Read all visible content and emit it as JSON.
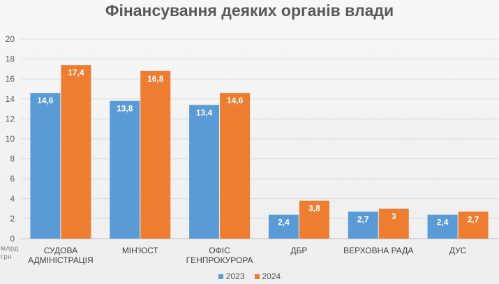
{
  "chart_data": {
    "type": "bar",
    "title": "Фінансування деяких органів влади",
    "unit_label": [
      "млрд",
      "грн"
    ],
    "categories": [
      [
        "СУДОВА",
        "АДМІНІСТРАЦІЯ"
      ],
      [
        "МІН'ЮСТ"
      ],
      [
        "ОФІС",
        "ГЕНПРОКУРОРА"
      ],
      [
        "ДБР"
      ],
      [
        "ВЕРХОВНА РАДА"
      ],
      [
        "ДУС"
      ]
    ],
    "series": [
      {
        "name": "2023",
        "color": "#5b9bd5",
        "values": [
          14.6,
          13.8,
          13.4,
          2.4,
          2.7,
          2.4
        ],
        "labels": [
          "14,6",
          "13,8",
          "13,4",
          "2,4",
          "2,7",
          "2,4"
        ]
      },
      {
        "name": "2024",
        "color": "#ed7d31",
        "values": [
          17.4,
          16.8,
          14.6,
          3.8,
          3,
          2.7
        ],
        "labels": [
          "17,4",
          "16,8",
          "14,6",
          "3,8",
          "3",
          "2,7"
        ]
      }
    ],
    "y_ticks": [
      "0",
      "2",
      "4",
      "6",
      "8",
      "10",
      "12",
      "14",
      "16",
      "18",
      "20"
    ],
    "ylim": [
      0,
      20
    ],
    "grid": true,
    "legend_position": "bottom"
  }
}
